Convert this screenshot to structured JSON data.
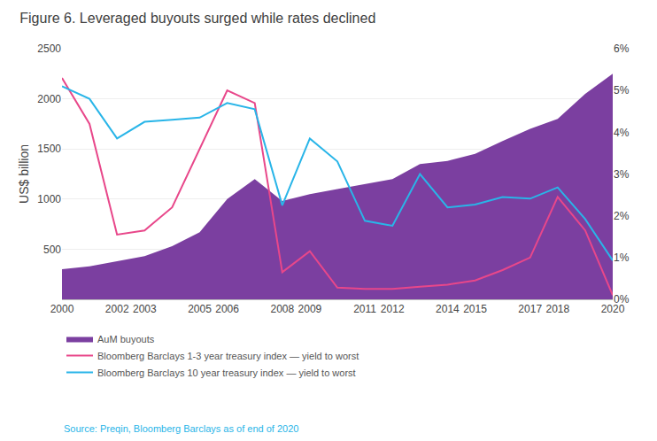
{
  "chart_data": {
    "type": "line",
    "title": "Figure 6. Leveraged buyouts surged while rates declined",
    "ylabel": "US$ billion",
    "x": [
      2000,
      2001,
      2002,
      2003,
      2004,
      2005,
      2006,
      2007,
      2008,
      2009,
      2010,
      2011,
      2012,
      2013,
      2014,
      2015,
      2016,
      2017,
      2018,
      2019,
      2020
    ],
    "series": [
      {
        "name": "AuM buyouts",
        "type": "area",
        "color": "#7B3FA0",
        "values": [
          300,
          330,
          380,
          430,
          530,
          670,
          1000,
          1200,
          980,
          1050,
          1100,
          1150,
          1200,
          1350,
          1380,
          1450,
          1580,
          1700,
          1800,
          2050,
          2250
        ]
      },
      {
        "name": "Bloomberg Barclays 1-3 year treasury index — yield to worst",
        "type": "line",
        "axis": "y2",
        "color": "#E8478A",
        "values": [
          5.3,
          4.2,
          1.55,
          1.65,
          2.2,
          3.6,
          5.0,
          4.7,
          0.65,
          1.15,
          0.28,
          0.25,
          0.25,
          0.3,
          0.35,
          0.45,
          0.7,
          1.0,
          2.45,
          1.65,
          0.1
        ]
      },
      {
        "name": "Bloomberg Barclays 10 year treasury index — yield to worst",
        "type": "line",
        "axis": "y2",
        "color": "#29B5E8",
        "values": [
          5.1,
          4.8,
          3.85,
          4.25,
          4.3,
          4.35,
          4.7,
          4.55,
          2.25,
          3.85,
          3.3,
          1.88,
          1.76,
          3.0,
          2.2,
          2.27,
          2.45,
          2.41,
          2.68,
          1.92,
          0.93
        ]
      }
    ],
    "xlim": [
      2000,
      2020
    ],
    "xticks": [
      2000,
      2002,
      2003,
      2005,
      2006,
      2008,
      2009,
      2011,
      2012,
      2014,
      2015,
      2017,
      2018,
      2020
    ],
    "ylim": [
      0,
      2500
    ],
    "yticks": [
      500,
      1000,
      1500,
      2000,
      2500
    ],
    "y2lim": [
      0,
      6
    ],
    "y2ticks": [
      {
        "value": 0,
        "label": "0%"
      },
      {
        "value": 1,
        "label": "1%"
      },
      {
        "value": 2,
        "label": "2%"
      },
      {
        "value": 3,
        "label": "3%"
      },
      {
        "value": 4,
        "label": "4%"
      },
      {
        "value": 5,
        "label": "5%"
      },
      {
        "value": 6,
        "label": "6%"
      }
    ],
    "grid": true,
    "legend": "bottom",
    "annotations": [
      "Source: Preqin, Bloomberg Barclays as of end of 2020"
    ]
  }
}
